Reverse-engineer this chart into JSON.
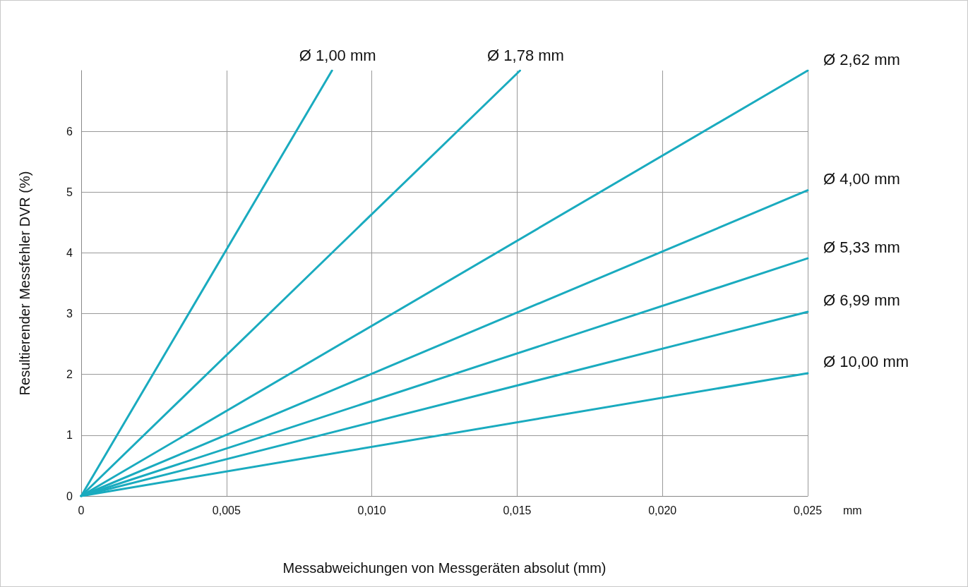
{
  "chart_data": {
    "type": "line",
    "xlabel": "Messabweichungen von Messgeräten absolut (mm)",
    "ylabel": "Resultierender Messfehler DVR (%)",
    "annotations": [
      "mm"
    ],
    "xlim": [
      0,
      0.025
    ],
    "xticks": [
      0,
      {
        "value": 0.005,
        "label": "0,005"
      },
      {
        "value": 0.01,
        "label": "0,010"
      },
      {
        "value": 0.015,
        "label": "0,015"
      },
      {
        "value": 0.02,
        "label": "0,020"
      },
      {
        "value": 0.025,
        "label": "0,025"
      }
    ],
    "ylim": [
      0,
      7
    ],
    "yticks": [
      0,
      1,
      2,
      3,
      4,
      5,
      6
    ],
    "grid": true,
    "legend": false,
    "marker": "none",
    "line_style": "solid",
    "series": [
      {
        "name": "Ø 1,00 mm",
        "color": "#1aabbf",
        "x": [
          0,
          0.00863
        ],
        "values": [
          0,
          7
        ]
      },
      {
        "name": "Ø 1,78 mm",
        "color": "#1aabbf",
        "x": [
          0,
          0.0151
        ],
        "values": [
          0,
          7
        ]
      },
      {
        "name": "Ø 2,62 mm",
        "color": "#1aabbf",
        "x": [
          0,
          0.025
        ],
        "values": [
          0,
          7
        ]
      },
      {
        "name": "Ø 4,00 mm",
        "color": "#1aabbf",
        "x": [
          0,
          0.025
        ],
        "values": [
          0,
          5.03
        ]
      },
      {
        "name": "Ø 5,33 mm",
        "color": "#1aabbf",
        "x": [
          0,
          0.025
        ],
        "values": [
          0,
          3.91
        ]
      },
      {
        "name": "Ø 6,99 mm",
        "color": "#1aabbf",
        "x": [
          0,
          0.025
        ],
        "values": [
          0,
          3.03
        ]
      },
      {
        "name": "Ø 10,00 mm",
        "color": "#1aabbf",
        "x": [
          0,
          0.025
        ],
        "values": [
          0,
          2.02
        ]
      }
    ]
  }
}
